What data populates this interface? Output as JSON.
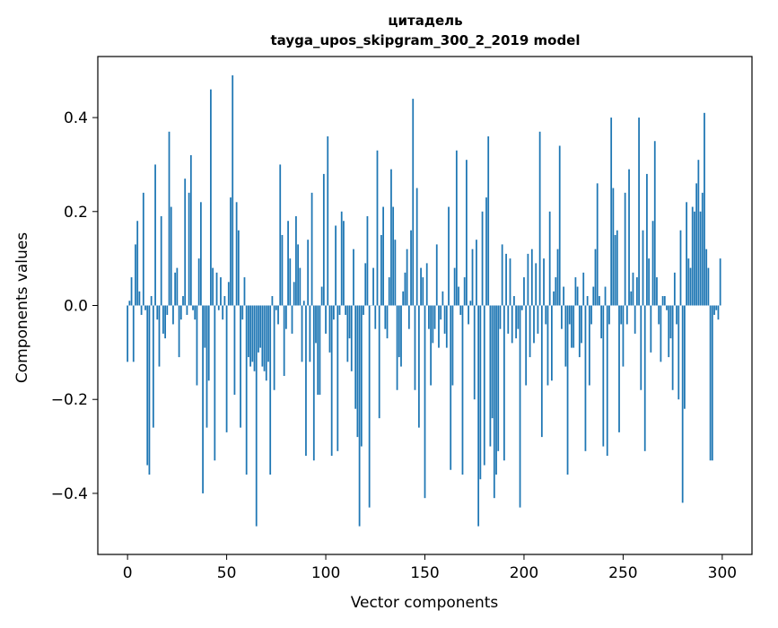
{
  "chart_data": {
    "type": "bar",
    "title_line1": "цитадель",
    "title_line2": "tayga_upos_skipgram_300_2_2019 model",
    "xlabel": "Vector components",
    "ylabel": "Components values",
    "xlim": [
      -15,
      315
    ],
    "ylim": [
      -0.53,
      0.53
    ],
    "xticks": [
      0,
      50,
      100,
      150,
      200,
      250,
      300
    ],
    "xtick_labels": [
      "0",
      "50",
      "100",
      "150",
      "200",
      "250",
      "300"
    ],
    "yticks": [
      -0.4,
      -0.2,
      0.0,
      0.2,
      0.4
    ],
    "ytick_labels": [
      "−0.4",
      "−0.2",
      "0.0",
      "0.2",
      "0.4"
    ],
    "bar_color": "#1f77b4",
    "values": [
      -0.12,
      0.01,
      0.06,
      -0.12,
      0.13,
      0.18,
      0.03,
      -0.02,
      0.24,
      -0.01,
      -0.34,
      -0.36,
      0.02,
      -0.26,
      0.3,
      -0.03,
      -0.13,
      0.19,
      -0.06,
      -0.07,
      -0.02,
      0.37,
      0.21,
      -0.04,
      0.07,
      0.08,
      -0.11,
      -0.03,
      0.02,
      0.27,
      -0.02,
      0.24,
      0.32,
      -0.01,
      -0.03,
      -0.17,
      0.1,
      0.22,
      -0.4,
      -0.09,
      -0.26,
      -0.16,
      0.46,
      0.08,
      -0.33,
      0.07,
      -0.01,
      0.06,
      -0.03,
      0.02,
      -0.27,
      0.05,
      0.23,
      0.49,
      -0.19,
      0.22,
      0.16,
      -0.26,
      -0.03,
      0.06,
      -0.36,
      -0.11,
      -0.13,
      -0.12,
      -0.14,
      -0.47,
      -0.1,
      -0.09,
      -0.13,
      -0.14,
      -0.16,
      -0.12,
      -0.36,
      0.02,
      -0.18,
      -0.01,
      -0.04,
      0.3,
      0.15,
      -0.15,
      -0.05,
      0.18,
      0.1,
      -0.06,
      0.05,
      0.19,
      0.13,
      0.08,
      -0.12,
      0.01,
      -0.32,
      0.14,
      -0.12,
      0.24,
      -0.33,
      -0.08,
      -0.19,
      -0.19,
      0.04,
      0.28,
      -0.06,
      0.36,
      -0.1,
      -0.32,
      -0.03,
      0.17,
      -0.31,
      -0.02,
      0.2,
      0.18,
      -0.02,
      -0.12,
      -0.07,
      -0.14,
      0.12,
      -0.22,
      -0.28,
      -0.47,
      -0.3,
      -0.02,
      0.09,
      0.19,
      -0.43,
      0.0,
      0.08,
      -0.05,
      0.33,
      -0.24,
      0.15,
      0.21,
      -0.05,
      -0.07,
      0.06,
      0.29,
      0.21,
      0.14,
      -0.18,
      -0.11,
      -0.13,
      0.03,
      0.07,
      0.12,
      -0.05,
      0.16,
      0.44,
      -0.18,
      0.25,
      -0.26,
      0.08,
      0.06,
      -0.41,
      0.09,
      -0.05,
      -0.17,
      -0.08,
      -0.05,
      0.13,
      -0.09,
      -0.03,
      0.03,
      -0.06,
      -0.09,
      0.21,
      -0.35,
      -0.17,
      0.08,
      0.33,
      0.04,
      -0.02,
      -0.36,
      0.06,
      0.31,
      -0.04,
      0.01,
      0.12,
      -0.2,
      0.14,
      -0.47,
      -0.37,
      0.2,
      -0.34,
      0.23,
      0.36,
      -0.3,
      -0.24,
      -0.41,
      -0.36,
      -0.31,
      -0.05,
      0.13,
      -0.33,
      0.11,
      -0.06,
      0.1,
      -0.08,
      0.02,
      -0.07,
      -0.05,
      -0.43,
      -0.01,
      0.06,
      -0.17,
      0.11,
      -0.11,
      0.12,
      -0.08,
      0.09,
      -0.06,
      0.37,
      -0.28,
      0.1,
      -0.04,
      -0.17,
      0.2,
      -0.16,
      0.03,
      0.06,
      0.12,
      0.34,
      -0.05,
      0.04,
      -0.13,
      -0.36,
      -0.04,
      -0.09,
      -0.09,
      0.06,
      0.04,
      -0.11,
      -0.08,
      0.07,
      -0.31,
      0.02,
      -0.17,
      -0.04,
      0.04,
      0.12,
      0.26,
      0.02,
      -0.07,
      -0.3,
      0.04,
      -0.32,
      -0.04,
      0.4,
      0.25,
      0.15,
      0.16,
      -0.27,
      -0.04,
      -0.13,
      0.24,
      -0.04,
      0.29,
      0.03,
      0.07,
      -0.06,
      0.06,
      0.4,
      -0.18,
      0.16,
      -0.31,
      0.28,
      0.1,
      -0.1,
      0.18,
      0.35,
      0.06,
      -0.04,
      -0.12,
      0.02,
      0.02,
      -0.01,
      -0.11,
      -0.07,
      -0.18,
      0.07,
      -0.04,
      -0.2,
      0.16,
      -0.42,
      -0.22,
      0.22,
      0.1,
      0.08,
      0.21,
      0.2,
      0.26,
      0.31,
      0.2,
      0.24,
      0.41,
      0.12,
      0.08,
      -0.33,
      -0.33,
      -0.02,
      -0.01,
      -0.03,
      0.1
    ]
  }
}
